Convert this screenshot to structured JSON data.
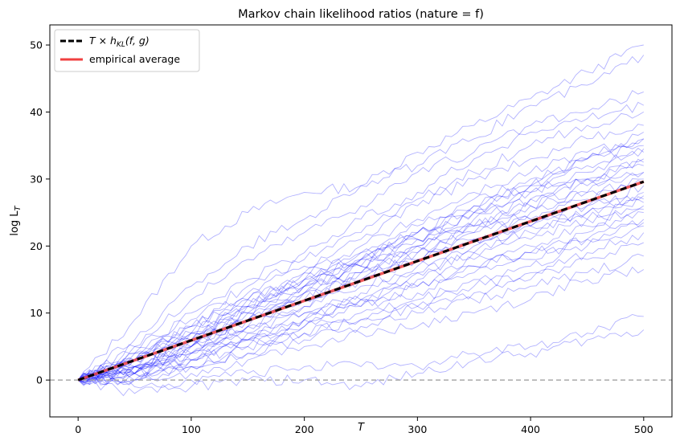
{
  "chart_data": {
    "type": "line",
    "title": "Markov chain likelihood ratios (nature = f)",
    "xlabel": "T",
    "ylabel_main": "log L",
    "ylabel_sub": "T",
    "xlim": [
      -25,
      525
    ],
    "ylim": [
      -5.5,
      53
    ],
    "xticks": [
      0,
      100,
      200,
      300,
      400,
      500
    ],
    "yticks": [
      0,
      10,
      20,
      30,
      40,
      50
    ],
    "grid": false,
    "legend_position": "top-left",
    "legend": {
      "theory_prefix": "T × h",
      "theory_sub": "KL",
      "theory_suffix": "(f, g)",
      "empirical": "empirical average"
    },
    "reference_line": {
      "y": 0,
      "style": "dashed",
      "color": "#aaaaaa"
    },
    "theory_line": {
      "slope": 0.0592,
      "color": "#000000",
      "style": "dashed"
    },
    "average_line": {
      "x": [
        0,
        500
      ],
      "y": [
        0,
        29.6
      ],
      "color": "#f04040"
    },
    "paths_color": "#0000ff",
    "paths": {
      "x": [
        0,
        50,
        100,
        150,
        200,
        250,
        300,
        350,
        400,
        450,
        500
      ],
      "y": [
        [
          0,
          9,
          20,
          25,
          28,
          29,
          34,
          38,
          42,
          46,
          50
        ],
        [
          0,
          6,
          14,
          20,
          24,
          29,
          32,
          36,
          41,
          44,
          48.5
        ],
        [
          0,
          5,
          12,
          18,
          22,
          26,
          31,
          34,
          38,
          40,
          43
        ],
        [
          0,
          4,
          10,
          15,
          19,
          24,
          28,
          33,
          37,
          39,
          41
        ],
        [
          0,
          5,
          9,
          14,
          18,
          22,
          27,
          31,
          35,
          38,
          40
        ],
        [
          0,
          3,
          8,
          13,
          17,
          21,
          26,
          30,
          33,
          36,
          38
        ],
        [
          0,
          3,
          7,
          12,
          16,
          20,
          24,
          28,
          31,
          34,
          36
        ],
        [
          0,
          4,
          7,
          11,
          15,
          19,
          23,
          27,
          30,
          33,
          35
        ],
        [
          0,
          3,
          6,
          10,
          14,
          18,
          22,
          26,
          29,
          32,
          34
        ],
        [
          0,
          2,
          6,
          10,
          13,
          17,
          21,
          25,
          28,
          30,
          33
        ],
        [
          0,
          3,
          7,
          11,
          14,
          17,
          20,
          23,
          26,
          29,
          32
        ],
        [
          0,
          2,
          6,
          9,
          13,
          16,
          19,
          22,
          25,
          28,
          31
        ],
        [
          0,
          3,
          5,
          9,
          12,
          15,
          18,
          21,
          24,
          27,
          30
        ],
        [
          0,
          2,
          5,
          8,
          12,
          15,
          18,
          21,
          23,
          26,
          29
        ],
        [
          0,
          1,
          5,
          8,
          11,
          14,
          17,
          20,
          22,
          25,
          28
        ],
        [
          0,
          2,
          4,
          7,
          10,
          13,
          16,
          19,
          21,
          24,
          27
        ],
        [
          0,
          1,
          4,
          7,
          10,
          12,
          15,
          18,
          20,
          23,
          26
        ],
        [
          0,
          1,
          3,
          6,
          9,
          11,
          14,
          17,
          19,
          22,
          25
        ],
        [
          0,
          2,
          4,
          6,
          8,
          11,
          13,
          16,
          18,
          21,
          24
        ],
        [
          0,
          1,
          3,
          5,
          8,
          10,
          12,
          15,
          17,
          20,
          23
        ],
        [
          0,
          0,
          2,
          5,
          7,
          9,
          11,
          14,
          16,
          19,
          22
        ],
        [
          0,
          1,
          2,
          4,
          7,
          9,
          11,
          13,
          15,
          18,
          20.5
        ],
        [
          0,
          0,
          2,
          4,
          6,
          8,
          10,
          12,
          14,
          16,
          18.5
        ],
        [
          0,
          0,
          1,
          3,
          5,
          7,
          8,
          10,
          12,
          15,
          16.5
        ],
        [
          0,
          -1,
          0,
          1,
          2,
          2,
          2,
          4,
          5,
          7,
          9.5
        ],
        [
          0,
          -2,
          -1,
          0,
          0,
          -1,
          1,
          3,
          4,
          6,
          7.5
        ],
        [
          0,
          4,
          8,
          12,
          16,
          19,
          22,
          26,
          29,
          33,
          36
        ],
        [
          0,
          3,
          6,
          11,
          15,
          18,
          21,
          24,
          27,
          30,
          32.5
        ],
        [
          0,
          2,
          5,
          9,
          12,
          16,
          20,
          23,
          27,
          30,
          31
        ],
        [
          0,
          1,
          4,
          8,
          11,
          15,
          19,
          23,
          26,
          28,
          29.5
        ],
        [
          0,
          2,
          6,
          10,
          14,
          17,
          20,
          22,
          24,
          26,
          27.5
        ],
        [
          0,
          1,
          5,
          9,
          13,
          16,
          18,
          21,
          23,
          24,
          25.5
        ],
        [
          0,
          3,
          8,
          12,
          15,
          18,
          22,
          25,
          28,
          31,
          34.5
        ],
        [
          0,
          2,
          7,
          11,
          14,
          18,
          21,
          25,
          29,
          33,
          37
        ],
        [
          0,
          1,
          3,
          6,
          9,
          12,
          16,
          19,
          23,
          25,
          26.5
        ],
        [
          0,
          0,
          3,
          6,
          9,
          12,
          14,
          17,
          19,
          21,
          23.5
        ]
      ]
    }
  }
}
